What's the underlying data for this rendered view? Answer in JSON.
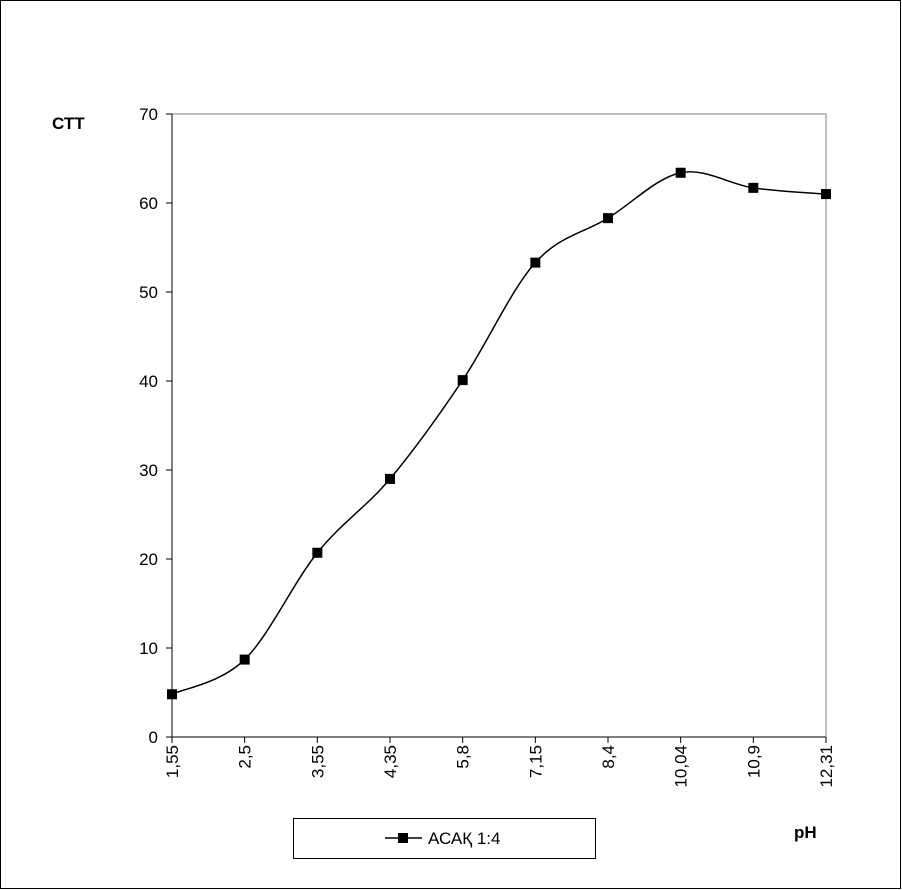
{
  "chart_data": {
    "type": "line",
    "y_label": "СТТ",
    "x_label": "pH",
    "categories": [
      "1,55",
      "2,5",
      "3,55",
      "4,35",
      "5,8",
      "7,15",
      "8,4",
      "10,04",
      "10,9",
      "12,31"
    ],
    "series": [
      {
        "name": "АСАҚ 1:4",
        "color": "#000000",
        "values": [
          4.8,
          8.7,
          20.7,
          29.0,
          40.1,
          53.3,
          58.3,
          63.4,
          61.7,
          61.0
        ]
      }
    ],
    "ylim": [
      0,
      70
    ],
    "yticks": [
      0,
      10,
      20,
      30,
      40,
      50,
      60,
      70
    ],
    "smooth": true,
    "legend": "bottom"
  }
}
